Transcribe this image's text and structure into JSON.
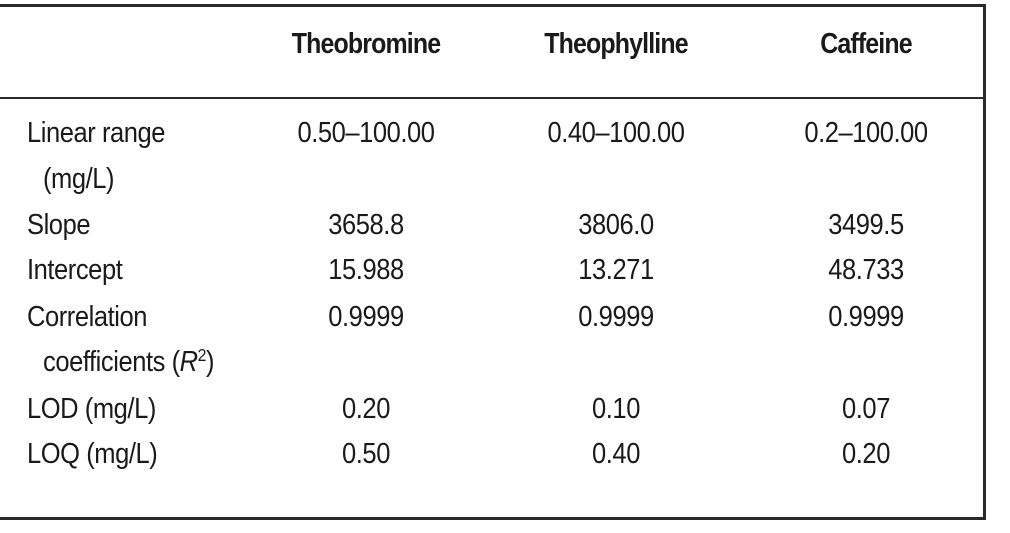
{
  "table": {
    "headers": [
      "",
      "Theobromine",
      "Theophylline",
      "Caffeine"
    ],
    "rows": [
      {
        "label_line1": "Linear range",
        "label_line2": "(mg/L)",
        "values": [
          "0.50–100.00",
          "0.40–100.00",
          "0.2–100.00"
        ]
      },
      {
        "label": "Slope",
        "values": [
          "3658.8",
          "3806.0",
          "3499.5"
        ]
      },
      {
        "label": "Intercept",
        "values": [
          "15.988",
          "13.271",
          "48.733"
        ]
      },
      {
        "label_line1": "Correlation",
        "label_line2_prefix": "coefficients (",
        "label_line2_italic": "R",
        "label_line2_sup": "2",
        "label_line2_suffix": ")",
        "values": [
          "0.9999",
          "0.9999",
          "0.9999"
        ]
      },
      {
        "label": "LOD (mg/L)",
        "values": [
          "0.20",
          "0.10",
          "0.07"
        ]
      },
      {
        "label": "LOQ (mg/L)",
        "values": [
          "0.50",
          "0.40",
          "0.20"
        ]
      }
    ]
  }
}
